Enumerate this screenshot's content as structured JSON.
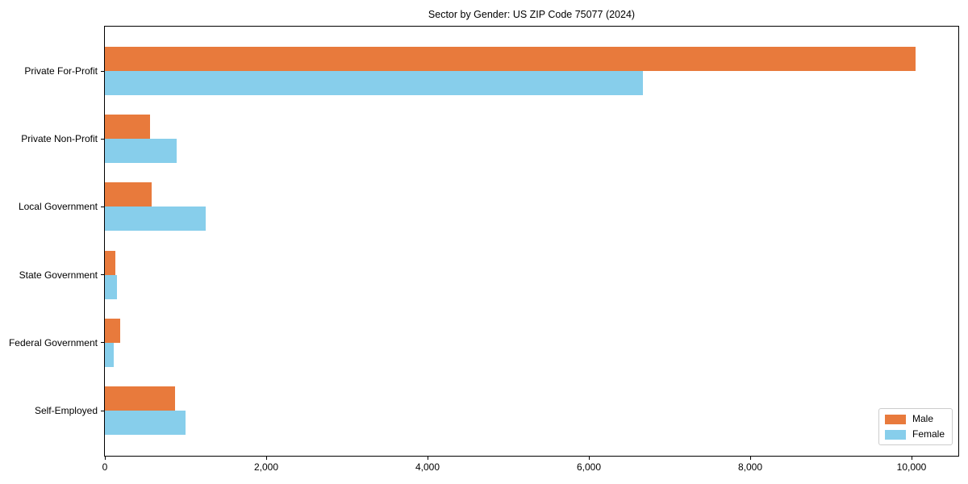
{
  "title": "Sector by Gender: US ZIP Code 75077 (2024)",
  "chart_data": {
    "type": "bar",
    "orientation": "horizontal",
    "title": "Sector by Gender: US ZIP Code 75077 (2024)",
    "categories": [
      "Private For-Profit",
      "Private Non-Profit",
      "Local Government",
      "State Government",
      "Federal Government",
      "Self-Employed"
    ],
    "series": [
      {
        "name": "Male",
        "color": "#e87a3c",
        "values": [
          10050,
          560,
          580,
          130,
          190,
          870
        ]
      },
      {
        "name": "Female",
        "color": "#87ceeb",
        "values": [
          6670,
          890,
          1250,
          150,
          110,
          1000
        ]
      }
    ],
    "xlabel": "",
    "ylabel": "",
    "xlim": [
      0,
      10580
    ],
    "x_ticks": [
      0,
      2000,
      4000,
      6000,
      8000,
      10000
    ],
    "x_tick_labels": [
      "0",
      "2,000",
      "4,000",
      "6,000",
      "8,000",
      "10,000"
    ],
    "grid": false,
    "legend_position": "lower right"
  },
  "legend": {
    "items": [
      {
        "label": "Male",
        "color": "#e87a3c"
      },
      {
        "label": "Female",
        "color": "#87ceeb"
      }
    ]
  }
}
